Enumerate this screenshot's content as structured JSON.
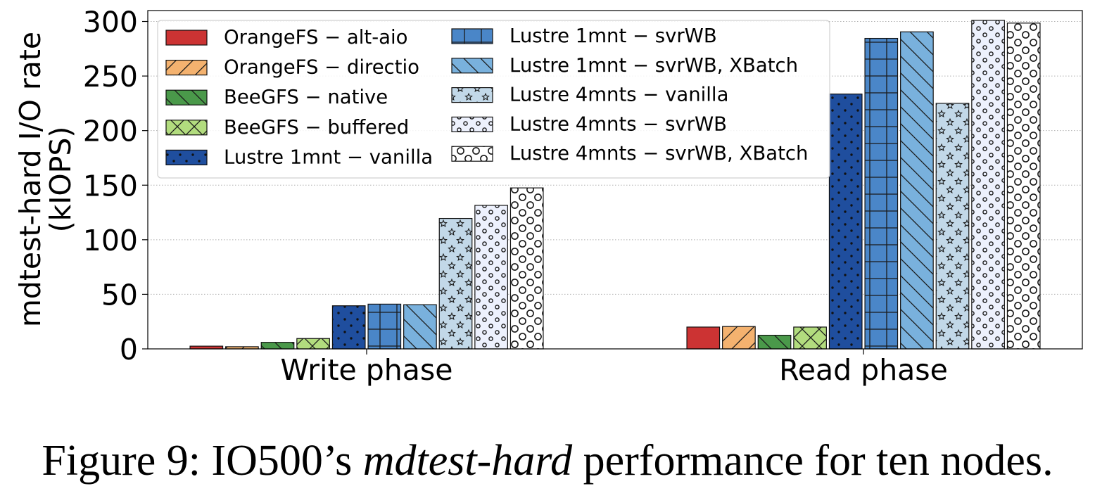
{
  "chart_data": {
    "type": "bar",
    "title": "",
    "xlabel": "",
    "ylabel": "mdtest-hard I/O rate (kIOPS)",
    "ylabel_lines": [
      "mdtest-hard I/O rate",
      "(kIOPS)"
    ],
    "ylim": [
      0,
      310
    ],
    "yticks": [
      0,
      50,
      100,
      150,
      200,
      250,
      300
    ],
    "grid": "horizontal dotted",
    "legend_placement": "top-left",
    "categories": [
      "Write phase",
      "Read phase"
    ],
    "series": [
      {
        "name": "OrangeFS − alt-aio",
        "values": [
          2.5,
          20
        ],
        "color": "#cc3333",
        "hatch": "none"
      },
      {
        "name": "OrangeFS − directio",
        "values": [
          2,
          20.5
        ],
        "color": "#f4b26f",
        "hatch": "slash"
      },
      {
        "name": "BeeGFS − native",
        "values": [
          6,
          12.5
        ],
        "color": "#4a994a",
        "hatch": "backslash"
      },
      {
        "name": "BeeGFS − buffered",
        "values": [
          9.5,
          20
        ],
        "color": "#b2dc7e",
        "hatch": "cross"
      },
      {
        "name": "Lustre 1mnt − vanilla",
        "values": [
          39.5,
          233.5
        ],
        "color": "#1f4e9e",
        "hatch": "dots"
      },
      {
        "name": "Lustre 1mnt − svrWB",
        "values": [
          41,
          284.5
        ],
        "color": "#4a86c8",
        "hatch": "grid"
      },
      {
        "name": "Lustre 1mnt − svrWB, XBatch",
        "values": [
          40.5,
          290.5
        ],
        "color": "#79b1dd",
        "hatch": "backslash"
      },
      {
        "name": "Lustre 4mnts − vanilla",
        "values": [
          119.5,
          225
        ],
        "color": "#c2d8e8",
        "hatch": "stars"
      },
      {
        "name": "Lustre 4mnts − svrWB",
        "values": [
          131.5,
          301
        ],
        "color": "#edf1fd",
        "hatch": "small-circles"
      },
      {
        "name": "Lustre 4mnts − svrWB, XBatch",
        "values": [
          147.5,
          298.5
        ],
        "color": "#ffffff",
        "hatch": "circles"
      }
    ]
  },
  "caption": {
    "prefix": "Figure 9: IO500’s ",
    "emphasis": "mdtest-hard",
    "suffix": " performance for ten nodes."
  }
}
